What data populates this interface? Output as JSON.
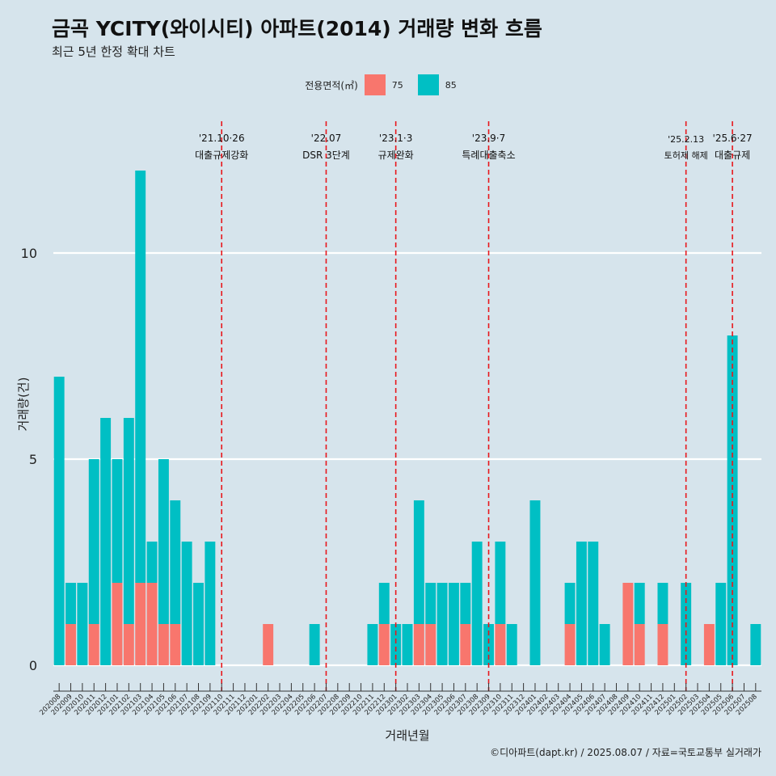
{
  "title": "금곡 YCITY(와이시티) 아파트(2014) 거래량 변화 흐름",
  "subtitle": "최근 5년 한정 확대 차트",
  "caption": "©디아파트(dapt.kr) / 2025.08.07 / 자료=국토교통부 실거래가",
  "legend": {
    "title": "전용면적(㎡)",
    "items": [
      {
        "label": "75",
        "color": "#f8766d"
      },
      {
        "label": "85",
        "color": "#00bfc4"
      }
    ]
  },
  "chart_data": {
    "type": "bar",
    "stacked": true,
    "xlabel": "거래년월",
    "ylabel": "거래량(건)",
    "ylim": [
      0,
      12
    ],
    "yticks": [
      0,
      5,
      10
    ],
    "categories": [
      "202008",
      "202009",
      "202010",
      "202011",
      "202012",
      "202101",
      "202102",
      "202103",
      "202104",
      "202105",
      "202106",
      "202107",
      "202108",
      "202109",
      "202110",
      "202111",
      "202112",
      "202201",
      "202202",
      "202203",
      "202204",
      "202205",
      "202206",
      "202207",
      "202208",
      "202209",
      "202210",
      "202211",
      "202212",
      "202301",
      "202302",
      "202303",
      "202304",
      "202305",
      "202306",
      "202307",
      "202308",
      "202309",
      "202310",
      "202311",
      "202312",
      "202401",
      "202402",
      "202403",
      "202404",
      "202405",
      "202406",
      "202407",
      "202408",
      "202409",
      "202410",
      "202411",
      "202412",
      "202501",
      "202502",
      "202503",
      "202504",
      "202505",
      "202506",
      "202507",
      "202508"
    ],
    "series": [
      {
        "name": "75",
        "color": "#f8766d",
        "values": [
          0,
          1,
          0,
          1,
          0,
          2,
          1,
          2,
          2,
          1,
          1,
          0,
          0,
          0,
          0,
          0,
          0,
          0,
          1,
          0,
          0,
          0,
          0,
          0,
          0,
          0,
          0,
          0,
          1,
          0,
          0,
          1,
          1,
          0,
          0,
          1,
          0,
          0,
          1,
          0,
          0,
          0,
          0,
          0,
          1,
          0,
          0,
          0,
          0,
          2,
          1,
          0,
          1,
          0,
          0,
          0,
          1,
          0,
          0,
          0,
          0
        ]
      },
      {
        "name": "85",
        "color": "#00bfc4",
        "values": [
          7,
          1,
          2,
          4,
          6,
          3,
          5,
          10,
          1,
          4,
          3,
          3,
          2,
          3,
          0,
          0,
          0,
          0,
          0,
          0,
          0,
          0,
          1,
          0,
          0,
          0,
          0,
          1,
          1,
          1,
          1,
          3,
          1,
          2,
          2,
          1,
          3,
          1,
          2,
          1,
          0,
          4,
          0,
          0,
          1,
          3,
          3,
          1,
          0,
          0,
          1,
          0,
          1,
          0,
          2,
          0,
          0,
          2,
          8,
          0,
          1
        ]
      }
    ],
    "events": [
      {
        "date_line1": "'21.10·26",
        "date_line2": "대출규제강화",
        "x": "202110"
      },
      {
        "date_line1": "'22.07",
        "date_line2": "DSR 3단계",
        "x": "202207"
      },
      {
        "date_line1": "'23.1·3",
        "date_line2": "규제완화",
        "x": "202301"
      },
      {
        "date_line1": "'23.9·7",
        "date_line2": "특례대출축소",
        "x": "202309"
      },
      {
        "date_line1": "'25.2.13",
        "date_line2": "토허제 해제",
        "x": "202502"
      },
      {
        "date_line1": "'25.6·27",
        "date_line2": "대출규제",
        "x": "202506"
      }
    ]
  }
}
